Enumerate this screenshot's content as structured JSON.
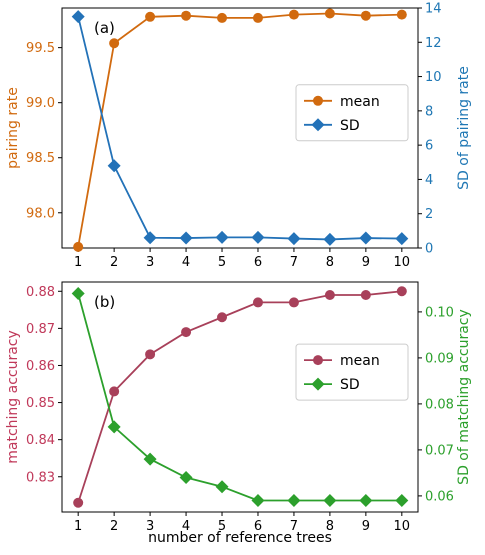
{
  "chart_data": [
    {
      "type": "line",
      "panel_label": "(a)",
      "x": [
        1,
        2,
        3,
        4,
        5,
        6,
        7,
        8,
        9,
        10
      ],
      "xlim": [
        0.55,
        10.45
      ],
      "left_axis": {
        "label": "pairing rate",
        "color": "#d16a0f",
        "ylim": [
          97.68,
          99.86
        ],
        "ticks": [
          98.0,
          98.5,
          99.0,
          99.5
        ],
        "tick_labels": [
          "98.0",
          "98.5",
          "99.0",
          "99.5"
        ]
      },
      "right_axis": {
        "label": "SD of pairing rate",
        "color": "#1f77b4",
        "ylim": [
          0,
          14
        ],
        "ticks": [
          0,
          2,
          4,
          6,
          8,
          10,
          12,
          14
        ],
        "tick_labels": [
          "0",
          "2",
          "4",
          "6",
          "8",
          "10",
          "12",
          "14"
        ]
      },
      "series": [
        {
          "name": "mean",
          "axis": "left",
          "color": "#d16a0f",
          "marker": "circle",
          "values": [
            97.69,
            99.54,
            99.78,
            99.79,
            99.77,
            99.77,
            99.8,
            99.81,
            99.79,
            99.8
          ]
        },
        {
          "name": "SD",
          "axis": "right",
          "color": "#2372b8",
          "marker": "diamond",
          "values": [
            13.5,
            4.8,
            0.6,
            0.58,
            0.62,
            0.62,
            0.55,
            0.5,
            0.58,
            0.55
          ]
        }
      ],
      "legend_position": "middle-right",
      "grid": false
    },
    {
      "type": "line",
      "panel_label": "(b)",
      "x": [
        1,
        2,
        3,
        4,
        5,
        6,
        7,
        8,
        9,
        10
      ],
      "x_tick_labels": [
        "1",
        "2",
        "3",
        "4",
        "5",
        "6",
        "7",
        "8",
        "9",
        "10"
      ],
      "xlabel": "number of reference trees",
      "xlim": [
        0.55,
        10.45
      ],
      "left_axis": {
        "label": "matching accuracy",
        "color": "#c0395a",
        "ylim": [
          0.8205,
          0.8825
        ],
        "ticks": [
          0.83,
          0.84,
          0.85,
          0.86,
          0.87,
          0.88
        ],
        "tick_labels": [
          "0.83",
          "0.84",
          "0.85",
          "0.86",
          "0.87",
          "0.88"
        ]
      },
      "right_axis": {
        "label": "SD of matching accuracy",
        "color": "#2ca02c",
        "ylim": [
          0.0565,
          0.1065
        ],
        "ticks": [
          0.06,
          0.07,
          0.08,
          0.09,
          0.1
        ],
        "tick_labels": [
          "0.06",
          "0.07",
          "0.08",
          "0.09",
          "0.10"
        ]
      },
      "series": [
        {
          "name": "mean",
          "axis": "left",
          "color": "#a8405a",
          "marker": "circle",
          "values": [
            0.823,
            0.853,
            0.863,
            0.869,
            0.873,
            0.877,
            0.877,
            0.879,
            0.879,
            0.88
          ]
        },
        {
          "name": "SD",
          "axis": "right",
          "color": "#2ca02c",
          "marker": "diamond",
          "values": [
            0.104,
            0.075,
            0.068,
            0.064,
            0.062,
            0.059,
            0.059,
            0.059,
            0.059,
            0.059
          ]
        }
      ],
      "legend_position": "middle-right",
      "grid": false
    }
  ]
}
